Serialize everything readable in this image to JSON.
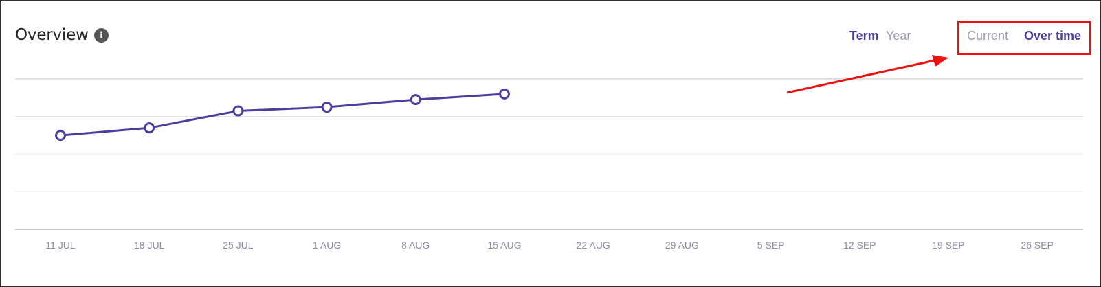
{
  "header": {
    "title": "Overview",
    "info_icon": "info-icon",
    "period_toggle": {
      "term": "Term",
      "year": "Year",
      "selected": "Term"
    },
    "view_toggle": {
      "current": "Current",
      "over_time": "Over time",
      "selected": "Over time"
    }
  },
  "annotation": {
    "highlight_color": "#ee1111",
    "arrow_color": "#ee1111"
  },
  "colors": {
    "series": "#4a3fa0",
    "active_toggle": "#4a3fa0",
    "inactive_toggle": "#9a9ab0",
    "grid": "#d9d9d9",
    "axis": "#b8b8c8"
  },
  "chart_data": {
    "type": "line",
    "categories": [
      "11 JUL",
      "18 JUL",
      "25 JUL",
      "1 AUG",
      "8 AUG",
      "15 AUG",
      "22 AUG",
      "29 AUG",
      "5 SEP",
      "12 SEP",
      "19 SEP",
      "26 SEP"
    ],
    "series": [
      {
        "values": [
          2.5,
          2.7,
          3.15,
          3.25,
          3.45,
          3.6,
          null,
          null,
          null,
          null,
          null,
          null
        ]
      }
    ],
    "ylim": [
      0,
      4
    ],
    "grid": true,
    "title": "",
    "xlabel": "",
    "ylabel": ""
  }
}
